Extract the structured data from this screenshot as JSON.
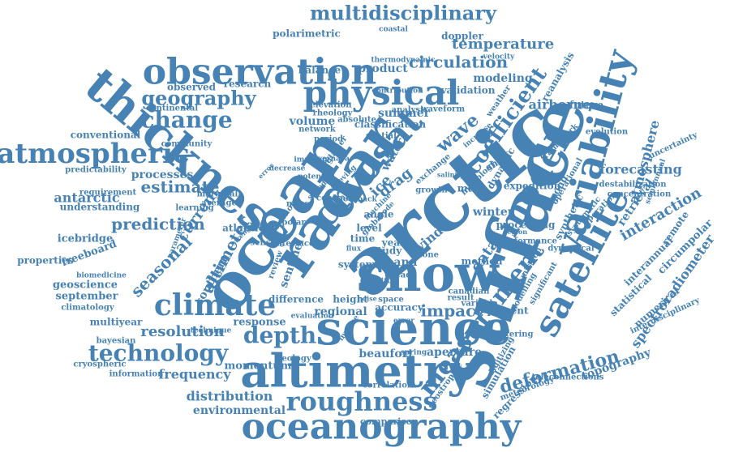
{
  "cloud": {
    "color": "#4682b4",
    "background": "#ffffff",
    "words": [
      "arctic",
      "surface",
      "ocean",
      "radar",
      "snow",
      "science",
      "thickness",
      "altimetry",
      "observation",
      "variability",
      "physical",
      "cryosat",
      "satellite",
      "model",
      "oceanography",
      "climate",
      "atmospheric",
      "measurement",
      "roughness",
      "multidisciplinary",
      "change",
      "technology",
      "depth",
      "geography",
      "coefficient",
      "wave",
      "seasonal",
      "impact",
      "altimeter",
      "circulation",
      "temperature",
      "estimate",
      "prediction",
      "deformation",
      "processes",
      "resolution",
      "frequency",
      "distribution",
      "environmental",
      "interaction",
      "forecasting",
      "atmosphere",
      "topography",
      "data",
      "spectroradiometer",
      "current",
      "drag",
      "airborne",
      "antarctic",
      "dynamic",
      "geoscience",
      "september",
      "icebridge",
      "freeboard",
      "product",
      "polarimetric",
      "modeling",
      "summer",
      "volume",
      "sentinel",
      "regional",
      "winter",
      "wind",
      "water",
      "ice",
      "southern",
      "circumpolar",
      "statistical",
      "numerical",
      "interdisciplinary",
      "aperture",
      "beaufort",
      "response",
      "momentum",
      "comparison",
      "retrieval",
      "reanalysis",
      "synthetic",
      "mission",
      "remote",
      "record",
      "method",
      "scale",
      "level",
      "time",
      "year",
      "study",
      "band",
      "system",
      "decade",
      "shelf",
      "angle",
      "global",
      "processing",
      "modelling",
      "significant",
      "interannual",
      "uncertainty",
      "properties",
      "understanding",
      "conventional",
      "observed",
      "research",
      "balance",
      "classification",
      "doppler",
      "validation",
      "future",
      "height",
      "accuracy",
      "difference",
      "multiyear",
      "bayesian",
      "geology",
      "simulation",
      "regression",
      "present",
      "variable",
      "analysis",
      "waveform",
      "weather",
      "expedition",
      "evolution",
      "pond",
      "melt",
      "polar",
      "atlantic",
      "canadian",
      "marginal",
      "conditions",
      "climatology",
      "biomedicine",
      "technique",
      "cryospheric",
      "information",
      "correlation",
      "geostrophic",
      "teleconnections",
      "scattering",
      "digitizing",
      "meteorology",
      "elevation",
      "rheology",
      "absolute",
      "network",
      "period",
      "glacier",
      "community",
      "continental",
      "predictability",
      "requirement",
      "learning",
      "average",
      "sensing",
      "interface",
      "review",
      "mass",
      "spatial",
      "exchange",
      "increase",
      "operational",
      "framework",
      "concentration",
      "semiannual",
      "destabilization",
      "operation",
      "systematic",
      "dynamical",
      "performance",
      "hydrology",
      "growth",
      "central",
      "zone",
      "space",
      "result",
      "coastal",
      "velocity",
      "thermodynamic",
      "contribution",
      "evaluation",
      "error",
      "spring",
      "inverse",
      "parameter",
      "decrease",
      "speed",
      "imaging",
      "potential",
      "severnaya",
      "feedback",
      "machine",
      "retrieving",
      "flux",
      "mode",
      "drift",
      "strength",
      "salinity",
      "noise",
      "error",
      "region",
      "sea"
    ]
  }
}
